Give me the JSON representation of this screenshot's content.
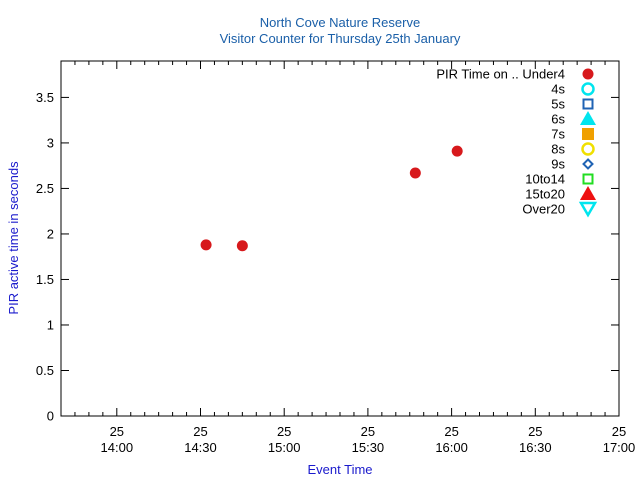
{
  "chart_data": {
    "type": "scatter",
    "title": "North Cove Nature Reserve",
    "subtitle": "Visitor Counter for Thursday 25th January",
    "xlabel": "Event Time",
    "ylabel": "PIR active time in seconds",
    "x_range": [
      "13:40",
      "17:00"
    ],
    "ylim": [
      0,
      3.9
    ],
    "grid": false,
    "legend_placement": "top-right",
    "legend_header": "PIR Time on ..",
    "x_ticks": [
      {
        "value": "14:00",
        "day": "25",
        "time": "14:00"
      },
      {
        "value": "14:30",
        "day": "25",
        "time": "14:30"
      },
      {
        "value": "15:00",
        "day": "25",
        "time": "15:00"
      },
      {
        "value": "15:30",
        "day": "25",
        "time": "15:30"
      },
      {
        "value": "16:00",
        "day": "25",
        "time": "16:00"
      },
      {
        "value": "16:30",
        "day": "25",
        "time": "16:30"
      },
      {
        "value": "17:00",
        "day": "25",
        "time": "17:00"
      }
    ],
    "y_ticks": [
      {
        "value": 0,
        "label": "0"
      },
      {
        "value": 0.5,
        "label": "0.5"
      },
      {
        "value": 1,
        "label": "1"
      },
      {
        "value": 1.5,
        "label": "1.5"
      },
      {
        "value": 2,
        "label": "2"
      },
      {
        "value": 2.5,
        "label": "2.5"
      },
      {
        "value": 3,
        "label": "3"
      },
      {
        "value": 3.5,
        "label": "3.5"
      }
    ],
    "series": [
      {
        "name": "Under4",
        "marker": "filled-circle",
        "color": "#d7191c",
        "points": [
          {
            "x": "14:32",
            "y": 1.88
          },
          {
            "x": "14:45",
            "y": 1.87
          },
          {
            "x": "15:47",
            "y": 2.67
          },
          {
            "x": "16:02",
            "y": 2.91
          }
        ]
      },
      {
        "name": "4s",
        "marker": "open-circle",
        "color": "#00e5ee",
        "points": []
      },
      {
        "name": "5s",
        "marker": "open-square",
        "color": "#1f63b4",
        "points": []
      },
      {
        "name": "6s",
        "marker": "filled-triangle-up",
        "color": "#00e5ee",
        "points": []
      },
      {
        "name": "7s",
        "marker": "filled-square",
        "color": "#f0a000",
        "points": []
      },
      {
        "name": "8s",
        "marker": "open-circle",
        "color": "#f0e000",
        "points": []
      },
      {
        "name": "9s",
        "marker": "open-diamond",
        "color": "#1f63b4",
        "points": []
      },
      {
        "name": "10to14",
        "marker": "open-square",
        "color": "#22dd22",
        "points": []
      },
      {
        "name": "15to20",
        "marker": "filled-triangle-up",
        "color": "#ee1111",
        "points": []
      },
      {
        "name": "Over20",
        "marker": "open-triangle-down",
        "color": "#00e5ee",
        "points": []
      }
    ]
  }
}
